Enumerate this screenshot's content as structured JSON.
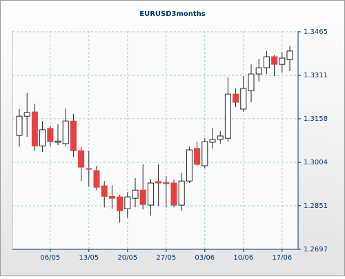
{
  "chart_data": {
    "type": "candlestick",
    "title": "EURUSD3months",
    "categories": [
      null,
      null,
      null,
      null,
      "06/05",
      null,
      null,
      null,
      null,
      "13/05",
      null,
      null,
      null,
      null,
      "20/05",
      null,
      null,
      null,
      null,
      "27/05",
      null,
      null,
      null,
      null,
      "03/06",
      null,
      null,
      null,
      null,
      "10/06",
      null,
      null,
      null,
      null,
      "17/06",
      null
    ],
    "open": [
      1.3099,
      1.3167,
      1.3182,
      1.3062,
      1.3124,
      1.3075,
      1.307,
      1.315,
      1.3045,
      1.2982,
      1.2975,
      1.2921,
      1.2884,
      1.2882,
      1.284,
      1.2877,
      1.2906,
      1.2853,
      1.2936,
      1.2933,
      1.2931,
      1.2853,
      1.2938,
      1.3053,
      1.2992,
      1.3075,
      1.3085,
      1.3089,
      1.3245,
      1.3192,
      1.3257,
      1.3316,
      1.3338,
      1.3377,
      1.335,
      1.3367
    ],
    "high": [
      1.3192,
      1.3248,
      1.3211,
      1.315,
      1.3133,
      1.3138,
      1.3194,
      1.3175,
      1.306,
      1.3045,
      1.2992,
      1.2938,
      1.2923,
      1.2889,
      1.2899,
      1.2948,
      1.2997,
      1.2943,
      1.2997,
      1.2955,
      1.2943,
      1.2967,
      1.306,
      1.3077,
      1.3089,
      1.3126,
      1.3114,
      1.3304,
      1.3265,
      1.3309,
      1.335,
      1.337,
      1.3397,
      1.3382,
      1.3394,
      1.3416
    ],
    "low": [
      1.306,
      1.3094,
      1.3045,
      1.3041,
      1.306,
      1.3065,
      1.306,
      1.3023,
      1.2938,
      1.2918,
      1.2906,
      1.2845,
      1.284,
      1.2791,
      1.2809,
      1.2845,
      1.2838,
      1.2816,
      1.285,
      1.2845,
      1.2845,
      1.2833,
      1.2931,
      1.2992,
      1.2984,
      1.3053,
      1.307,
      1.3075,
      1.3199,
      1.3182,
      1.3216,
      1.3289,
      1.3316,
      1.3309,
      1.3321,
      1.3326
    ],
    "close": [
      1.3167,
      1.318,
      1.3062,
      1.3119,
      1.3077,
      1.3079,
      1.315,
      1.3045,
      1.2987,
      1.298,
      1.2916,
      1.2884,
      1.2877,
      1.2833,
      1.2882,
      1.2906,
      1.2855,
      1.2931,
      1.2931,
      1.2929,
      1.2853,
      1.2938,
      1.3048,
      1.2997,
      1.3077,
      1.3085,
      1.3097,
      1.3245,
      1.3216,
      1.3265,
      1.3316,
      1.3338,
      1.3377,
      1.335,
      1.3372,
      1.3397
    ],
    "up_color": "#ffffff",
    "down_color": "#e84040",
    "ylim": [
      1.2697,
      1.3465
    ],
    "yticks": [
      1.2697,
      1.2851,
      1.3004,
      1.3158,
      1.3311,
      1.3465
    ],
    "grid": true
  }
}
